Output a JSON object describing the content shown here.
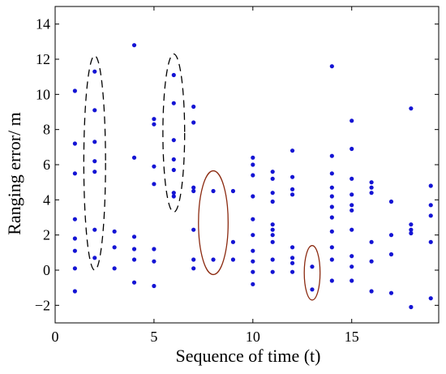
{
  "chart_data": {
    "type": "scatter",
    "xlabel": "Sequence of time (t)",
    "ylabel": "Ranging error/ m",
    "xlim": [
      0,
      19.4
    ],
    "ylim": [
      -3,
      15
    ],
    "xticks": [
      0,
      5,
      10,
      15
    ],
    "yticks": [
      -2,
      0,
      2,
      4,
      6,
      8,
      10,
      12,
      14
    ],
    "tick_labels_x": [
      "0",
      "5",
      "10",
      "15"
    ],
    "tick_labels_y": [
      "−2",
      "0",
      "2",
      "4",
      "6",
      "8",
      "10",
      "12",
      "14"
    ],
    "grid": false,
    "colors": {
      "points": "#1414d4",
      "dashed_ellipse": "#000000",
      "solid_ellipse": "#8b2a10",
      "axes": "#000000"
    },
    "series": [
      {
        "points": [
          [
            1,
            10.2
          ],
          [
            1,
            7.2
          ],
          [
            1,
            5.5
          ],
          [
            1,
            2.9
          ],
          [
            1,
            1.8
          ],
          [
            1,
            1.1
          ],
          [
            1,
            0.1
          ],
          [
            1,
            -1.2
          ],
          [
            2,
            11.3
          ],
          [
            2,
            9.1
          ],
          [
            2,
            7.3
          ],
          [
            2,
            6.2
          ],
          [
            2,
            5.6
          ],
          [
            2,
            2.3
          ],
          [
            2,
            0.7
          ],
          [
            3,
            2.2
          ],
          [
            3,
            1.3
          ],
          [
            3,
            0.1
          ],
          [
            4,
            12.8
          ],
          [
            4,
            6.4
          ],
          [
            4,
            1.9
          ],
          [
            4,
            1.2
          ],
          [
            4,
            0.6
          ],
          [
            4,
            -0.7
          ],
          [
            5,
            8.6
          ],
          [
            5,
            8.3
          ],
          [
            5,
            5.9
          ],
          [
            5,
            4.9
          ],
          [
            5,
            1.2
          ],
          [
            5,
            0.5
          ],
          [
            5,
            -0.9
          ],
          [
            6,
            11.1
          ],
          [
            6,
            9.5
          ],
          [
            6,
            7.4
          ],
          [
            6,
            6.3
          ],
          [
            6,
            5.7
          ],
          [
            6,
            4.4
          ],
          [
            6,
            4.2
          ],
          [
            7,
            9.3
          ],
          [
            7,
            8.4
          ],
          [
            7,
            4.7
          ],
          [
            7,
            4.5
          ],
          [
            7,
            2.3
          ],
          [
            7,
            0.6
          ],
          [
            7,
            0.1
          ],
          [
            8,
            4.5
          ],
          [
            8,
            0.6
          ],
          [
            9,
            4.5
          ],
          [
            9,
            1.6
          ],
          [
            9,
            0.6
          ],
          [
            10,
            6.4
          ],
          [
            10,
            6.0
          ],
          [
            10,
            5.4
          ],
          [
            10,
            4.2
          ],
          [
            10,
            2.9
          ],
          [
            10,
            2.0
          ],
          [
            10,
            1.1
          ],
          [
            10,
            0.5
          ],
          [
            10,
            -0.1
          ],
          [
            10,
            -0.8
          ],
          [
            11,
            5.6
          ],
          [
            11,
            5.2
          ],
          [
            11,
            4.4
          ],
          [
            11,
            3.9
          ],
          [
            11,
            2.6
          ],
          [
            11,
            2.3
          ],
          [
            11,
            2.0
          ],
          [
            11,
            1.6
          ],
          [
            11,
            0.6
          ],
          [
            11,
            -0.1
          ],
          [
            12,
            6.8
          ],
          [
            12,
            5.3
          ],
          [
            12,
            4.6
          ],
          [
            12,
            4.3
          ],
          [
            12,
            1.3
          ],
          [
            12,
            0.7
          ],
          [
            12,
            0.4
          ],
          [
            12,
            -0.1
          ],
          [
            13,
            0.2
          ],
          [
            13,
            -1.1
          ],
          [
            14,
            11.6
          ],
          [
            14,
            6.5
          ],
          [
            14,
            5.5
          ],
          [
            14,
            4.7
          ],
          [
            14,
            4.2
          ],
          [
            14,
            3.6
          ],
          [
            14,
            3.0
          ],
          [
            14,
            2.2
          ],
          [
            14,
            1.3
          ],
          [
            14,
            0.6
          ],
          [
            14,
            -0.6
          ],
          [
            15,
            8.5
          ],
          [
            15,
            6.9
          ],
          [
            15,
            5.2
          ],
          [
            15,
            4.3
          ],
          [
            15,
            3.7
          ],
          [
            15,
            3.4
          ],
          [
            15,
            2.3
          ],
          [
            15,
            0.8
          ],
          [
            15,
            0.2
          ],
          [
            15,
            -0.6
          ],
          [
            16,
            5.0
          ],
          [
            16,
            4.7
          ],
          [
            16,
            4.4
          ],
          [
            16,
            1.6
          ],
          [
            16,
            0.5
          ],
          [
            16,
            -1.2
          ],
          [
            17,
            3.9
          ],
          [
            17,
            2.0
          ],
          [
            17,
            0.9
          ],
          [
            17,
            -1.3
          ],
          [
            18,
            9.2
          ],
          [
            18,
            2.6
          ],
          [
            18,
            2.3
          ],
          [
            18,
            2.1
          ],
          [
            18,
            -2.1
          ],
          [
            19,
            4.8
          ],
          [
            19,
            3.7
          ],
          [
            19,
            3.1
          ],
          [
            19,
            1.6
          ],
          [
            19,
            -1.6
          ]
        ]
      }
    ],
    "annotations": [
      {
        "shape": "ellipse",
        "style": "dashed",
        "center": [
          2,
          6.1
        ],
        "radii": [
          0.55,
          6.1
        ]
      },
      {
        "shape": "ellipse",
        "style": "dashed",
        "center": [
          6,
          7.8
        ],
        "radii": [
          0.55,
          4.5
        ]
      },
      {
        "shape": "ellipse",
        "style": "solid",
        "center": [
          8,
          2.7
        ],
        "radii": [
          0.75,
          2.95
        ]
      },
      {
        "shape": "ellipse",
        "style": "solid",
        "center": [
          13,
          -0.15
        ],
        "radii": [
          0.4,
          1.55
        ]
      }
    ]
  }
}
